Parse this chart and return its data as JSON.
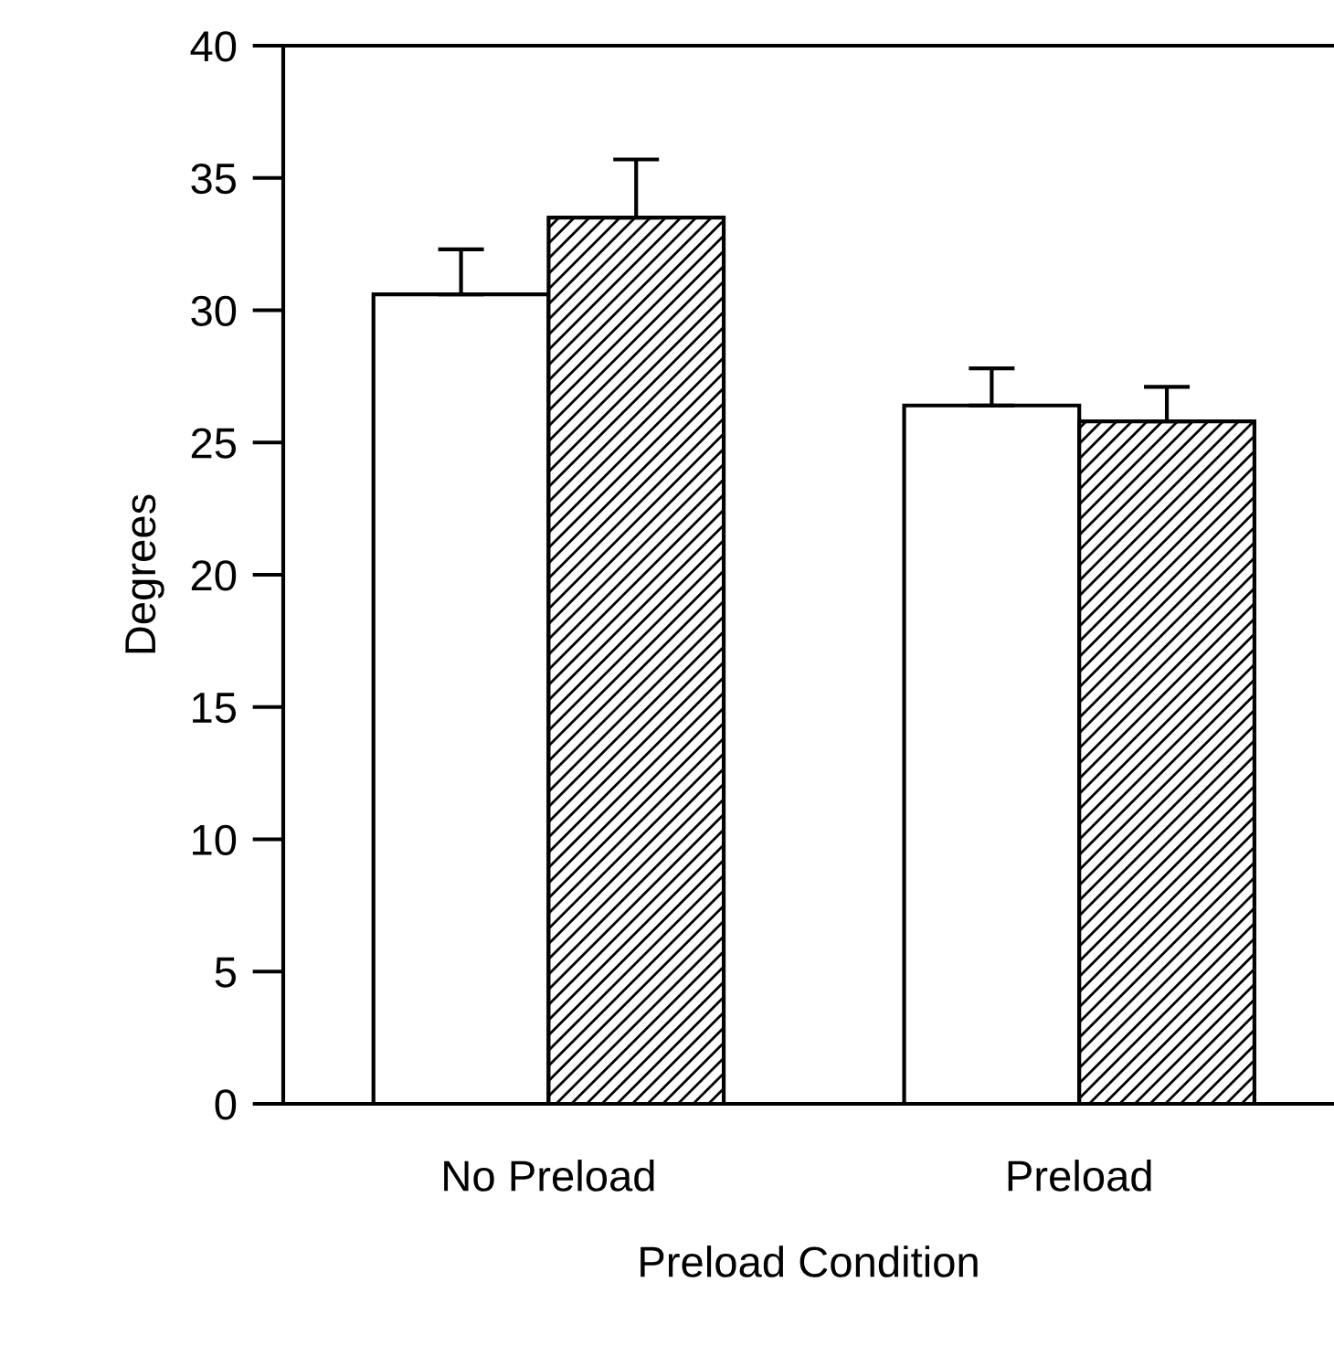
{
  "chart_data": {
    "type": "bar",
    "xlabel": "Preload Condition",
    "ylabel": "Degrees",
    "categories": [
      "No Preload",
      "Preload"
    ],
    "series": [
      {
        "color": "#ffffff",
        "values": [
          30.6,
          26.4
        ],
        "errors": [
          [
            30.6,
            32.3
          ],
          [
            26.4,
            27.8
          ]
        ]
      },
      {
        "color": "#000000",
        "values": [
          33.5,
          25.8
        ],
        "errors": [
          [
            33.5,
            35.7
          ],
          [
            25.8,
            27.1
          ]
        ]
      }
    ],
    "ylim": [
      0,
      40
    ],
    "yticks": [
      0,
      5,
      10,
      15,
      20,
      25,
      30,
      35,
      40
    ],
    "grid": false
  }
}
